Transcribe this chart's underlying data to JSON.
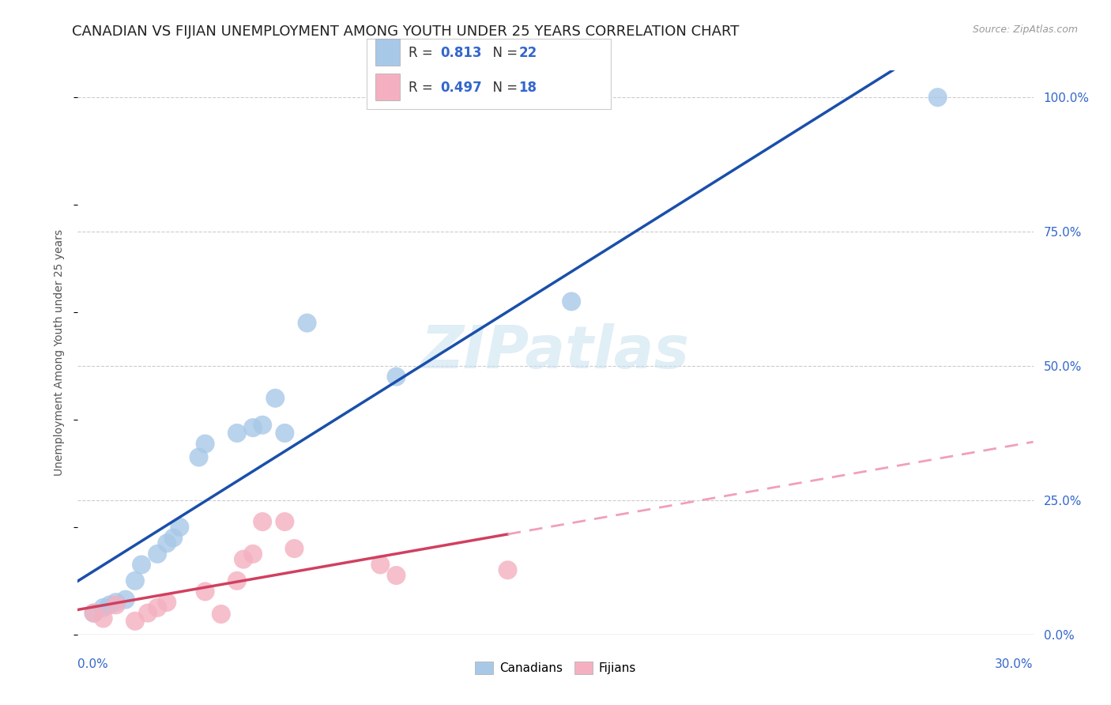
{
  "title": "CANADIAN VS FIJIAN UNEMPLOYMENT AMONG YOUTH UNDER 25 YEARS CORRELATION CHART",
  "source": "Source: ZipAtlas.com",
  "ylabel": "Unemployment Among Youth under 25 years",
  "xlim": [
    0.0,
    0.3
  ],
  "ylim": [
    0.0,
    1.05
  ],
  "background_color": "#ffffff",
  "grid_color": "#cccccc",
  "watermark": "ZIPatlas",
  "canadian_color": "#a8c8e8",
  "canadian_line_color": "#1a4faa",
  "fijian_color": "#f4b0c0",
  "fijian_line_color": "#d04060",
  "fijian_dash_color": "#f0a0b8",
  "r_canadian": 0.813,
  "n_canadian": 22,
  "r_fijian": 0.497,
  "n_fijian": 18,
  "canadian_x": [
    0.005,
    0.008,
    0.01,
    0.012,
    0.015,
    0.018,
    0.02,
    0.025,
    0.028,
    0.03,
    0.032,
    0.038,
    0.04,
    0.05,
    0.055,
    0.058,
    0.062,
    0.065,
    0.072,
    0.1,
    0.155,
    0.27
  ],
  "canadian_y": [
    0.04,
    0.05,
    0.055,
    0.06,
    0.065,
    0.1,
    0.13,
    0.15,
    0.17,
    0.18,
    0.2,
    0.33,
    0.355,
    0.375,
    0.385,
    0.39,
    0.44,
    0.375,
    0.58,
    0.48,
    0.62,
    1.0
  ],
  "fijian_x": [
    0.005,
    0.008,
    0.012,
    0.018,
    0.022,
    0.025,
    0.028,
    0.04,
    0.045,
    0.05,
    0.052,
    0.055,
    0.058,
    0.065,
    0.068,
    0.095,
    0.1,
    0.135
  ],
  "fijian_y": [
    0.04,
    0.03,
    0.055,
    0.025,
    0.04,
    0.05,
    0.06,
    0.08,
    0.038,
    0.1,
    0.14,
    0.15,
    0.21,
    0.21,
    0.16,
    0.13,
    0.11,
    0.12
  ],
  "ytick_right_labels": [
    "0.0%",
    "25.0%",
    "50.0%",
    "75.0%",
    "100.0%"
  ],
  "ytick_right_values": [
    0.0,
    0.25,
    0.5,
    0.75,
    1.0
  ],
  "axis_label_color": "#3366cc",
  "title_fontsize": 13,
  "axis_fontsize": 11,
  "legend_fontsize": 12
}
